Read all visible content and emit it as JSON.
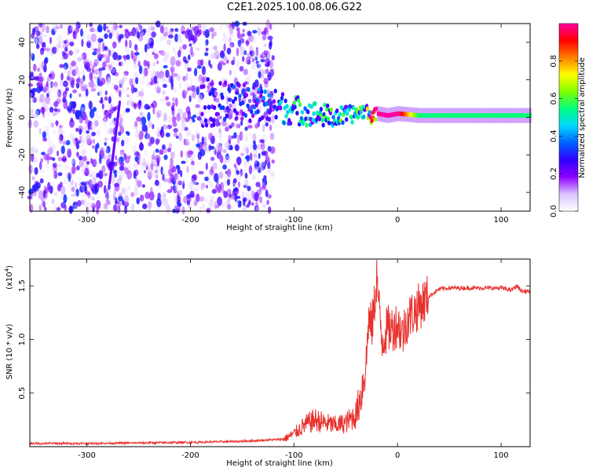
{
  "title": "C2E1.2025.100.08.06.G22",
  "colors": {
    "snr_line": "#e8312e",
    "colorbar": [
      "#ffffff",
      "#d9c4ff",
      "#8f00ff",
      "#2f00ff",
      "#0060ff",
      "#00d8ff",
      "#00ff80",
      "#7fff00",
      "#ffff00",
      "#ff8000",
      "#ff0000",
      "#ff00a0"
    ]
  },
  "chart_data": [
    {
      "type": "heatmap",
      "title": "C2E1.2025.100.08.06.G22",
      "xlabel": "Height of straight line (km)",
      "ylabel": "Frequency (Hz)",
      "xlim": [
        -355,
        128
      ],
      "ylim": [
        -50,
        50
      ],
      "x_ticks": [
        -300,
        -200,
        -100,
        0,
        100
      ],
      "y_ticks": [
        -40,
        -20,
        0,
        20,
        40
      ],
      "colorbar": {
        "label": "Normalized spectral amplitude",
        "range": [
          0,
          1
        ],
        "ticks": [
          0.0,
          0.2,
          0.4,
          0.6,
          0.8
        ]
      },
      "features": {
        "noise_region_x": [
          -355,
          -130
        ],
        "signal_track": {
          "x": [
            -190,
            -150,
            -120,
            -100,
            -80,
            -60,
            -40,
            -30,
            -25,
            -20,
            -10,
            0,
            20,
            50,
            80,
            100,
            128
          ],
          "freq": [
            8,
            7,
            6,
            4,
            2,
            0,
            2,
            4,
            0,
            2,
            1,
            2,
            1,
            1,
            1,
            1,
            1
          ],
          "amplitude": [
            0.25,
            0.3,
            0.35,
            0.45,
            0.45,
            0.5,
            0.5,
            0.5,
            1.0,
            1.0,
            1.0,
            1.0,
            0.55,
            0.55,
            0.55,
            0.55,
            0.55
          ]
        }
      }
    },
    {
      "type": "line",
      "xlabel": "Height of straight line (km)",
      "ylabel": "SNR (10 * v/v)",
      "y_multiplier": "(x10",
      "y_multiplier_exp": "4",
      "y_multiplier_close": ")",
      "xlim": [
        -355,
        128
      ],
      "ylim": [
        0,
        1.75
      ],
      "x_ticks": [
        -300,
        -200,
        -100,
        0,
        100
      ],
      "y_ticks": [
        0.5,
        1.0,
        1.5
      ],
      "y_tick_labels": [
        "0.5",
        "1.0",
        "1.5"
      ],
      "series": [
        {
          "x": [
            -355,
            -300,
            -200,
            -150,
            -110,
            -100,
            -90,
            -80,
            -70,
            -60,
            -50,
            -40,
            -35,
            -30,
            -28,
            -25,
            -22,
            -20,
            -18,
            -15,
            -12,
            -10,
            -5,
            0,
            5,
            10,
            15,
            20,
            25,
            30,
            40,
            50,
            60,
            80,
            100,
            110,
            115,
            120,
            128
          ],
          "y": [
            0.03,
            0.03,
            0.04,
            0.05,
            0.07,
            0.12,
            0.2,
            0.25,
            0.22,
            0.2,
            0.22,
            0.3,
            0.5,
            0.8,
            1.2,
            1.1,
            1.35,
            1.6,
            1.3,
            1.0,
            1.05,
            1.1,
            1.1,
            1.15,
            1.05,
            1.2,
            1.25,
            1.3,
            1.35,
            1.4,
            1.47,
            1.48,
            1.48,
            1.48,
            1.48,
            1.46,
            1.5,
            1.45,
            1.45
          ],
          "color": "#e8312e"
        }
      ]
    }
  ]
}
